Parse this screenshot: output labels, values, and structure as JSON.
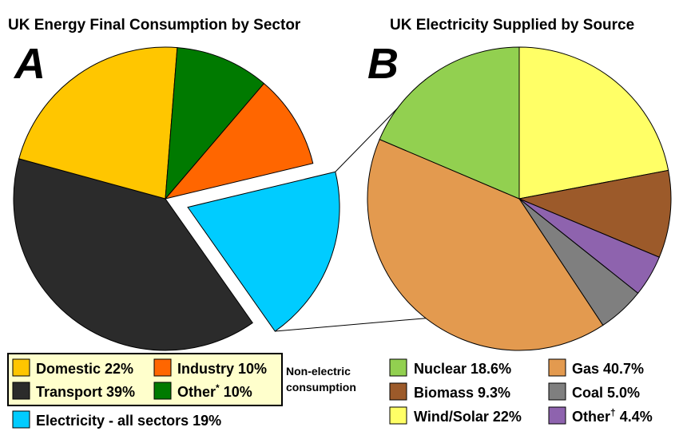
{
  "colors": {
    "domestic": "#FFC600",
    "industry": "#FF6600",
    "transport": "#2B2B2B",
    "other_sector": "#007A00",
    "electricity": "#00CCFF",
    "nuclear": "#92D050",
    "gas": "#E39A4F",
    "biomass": "#9C5A2A",
    "coal": "#7F7F7F",
    "wind_solar": "#FFFF66",
    "other_source": "#8E63AE",
    "legend_box_bg": "#FFFFCC"
  },
  "chart_data": [
    {
      "type": "pie",
      "panel": "A",
      "title": "UK Energy Final Consumption by Sector",
      "exploded_slice": "Electricity",
      "slices": [
        {
          "name": "Industry",
          "value": 10,
          "label": "Industry 10%",
          "color_key": "industry"
        },
        {
          "name": "Electricity",
          "value": 19,
          "label": "Electricity - all sectors 19%",
          "color_key": "electricity"
        },
        {
          "name": "Transport",
          "value": 39,
          "label": "Transport 39%",
          "color_key": "transport"
        },
        {
          "name": "Domestic",
          "value": 22,
          "label": "Domestic 22%",
          "color_key": "domestic"
        },
        {
          "name": "Other",
          "value": 10,
          "label": "Other",
          "sup": "*",
          "label_suffix": " 10%",
          "color_key": "other_sector"
        }
      ],
      "legend_note_line1": "Non-electric",
      "legend_note_line2": "consumption"
    },
    {
      "type": "pie",
      "panel": "B",
      "title": "UK Electricity Supplied by Source",
      "slices": [
        {
          "name": "Wind/Solar",
          "value": 22,
          "label": "Wind/Solar 22%",
          "color_key": "wind_solar"
        },
        {
          "name": "Biomass",
          "value": 9.3,
          "label": "Biomass 9.3%",
          "color_key": "biomass"
        },
        {
          "name": "Other",
          "value": 4.4,
          "label": "Other",
          "sup": "†",
          "label_suffix": " 4.4%",
          "color_key": "other_source"
        },
        {
          "name": "Coal",
          "value": 5.0,
          "label": "Coal 5.0%",
          "color_key": "coal"
        },
        {
          "name": "Gas",
          "value": 40.7,
          "label": "Gas 40.7%",
          "color_key": "gas"
        },
        {
          "name": "Nuclear",
          "value": 18.6,
          "label": "Nuclear 18.6%",
          "color_key": "nuclear"
        }
      ]
    }
  ]
}
